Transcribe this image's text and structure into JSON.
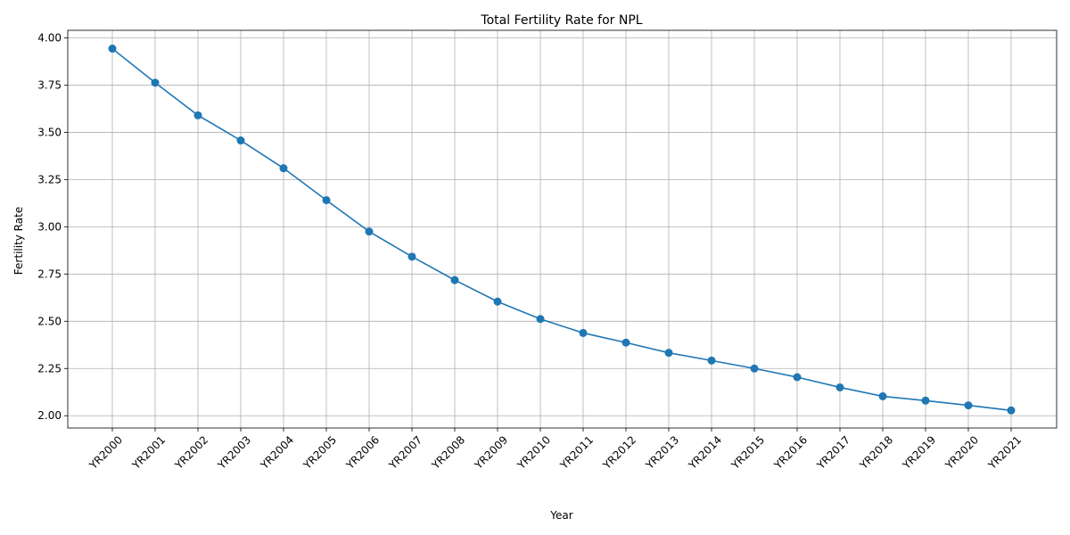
{
  "chart_data": {
    "type": "line",
    "title": "Total Fertility Rate for NPL",
    "xlabel": "Year",
    "ylabel": "Fertility Rate",
    "categories": [
      "YR2000",
      "YR2001",
      "YR2002",
      "YR2003",
      "YR2004",
      "YR2005",
      "YR2006",
      "YR2007",
      "YR2008",
      "YR2009",
      "YR2010",
      "YR2011",
      "YR2012",
      "YR2013",
      "YR2014",
      "YR2015",
      "YR2016",
      "YR2017",
      "YR2018",
      "YR2019",
      "YR2020",
      "YR2021"
    ],
    "series": [
      {
        "values": [
          3.943,
          3.763,
          3.59,
          3.457,
          3.31,
          3.141,
          2.975,
          2.842,
          2.718,
          2.604,
          2.512,
          2.438,
          2.387,
          2.333,
          2.292,
          2.25,
          2.204,
          2.15,
          2.103,
          2.08,
          2.055,
          2.028
        ],
        "color": "#1f77b4"
      }
    ],
    "yticks": [
      "2.00",
      "2.25",
      "2.50",
      "2.75",
      "3.00",
      "3.25",
      "3.50",
      "3.75",
      "4.00"
    ],
    "ylim": [
      1.935,
      4.04
    ],
    "grid": true,
    "legend": "none"
  }
}
